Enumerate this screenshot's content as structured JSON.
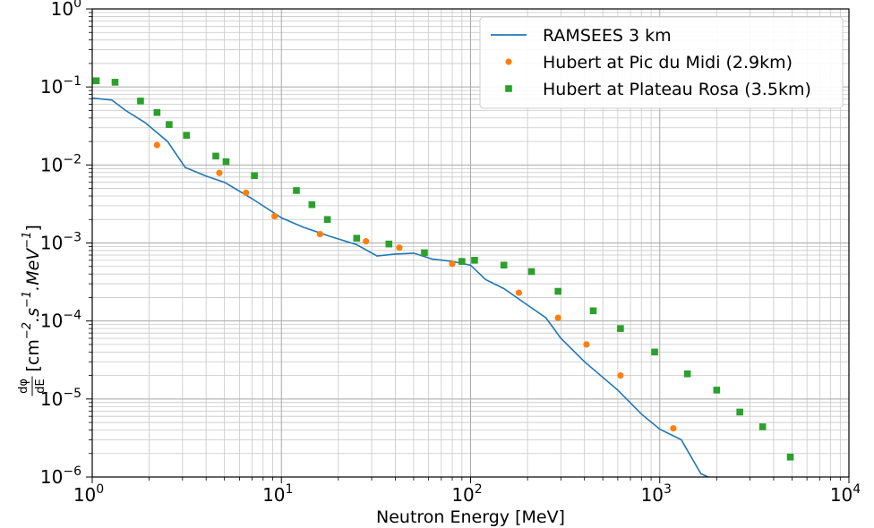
{
  "chart_data": {
    "type": "line",
    "title": "",
    "xlabel": "Neutron Energy [MeV]",
    "ylabel": {
      "prefix_num": "dφ",
      "prefix_den": "dE",
      "bracket_text": "[cm",
      "exp1": "−2",
      "mid1": ".s",
      "exp2": "−1",
      "mid2": ".MeV",
      "exp3": "−1",
      "suffix": "]"
    },
    "xscale": "log",
    "yscale": "log",
    "xlim": [
      1,
      10000
    ],
    "ylim": [
      1e-06,
      1
    ],
    "grid": "major and minor",
    "legend_position": "top-right",
    "x_ticks": [
      {
        "value": 1,
        "base": "10",
        "exp": "0"
      },
      {
        "value": 10,
        "base": "10",
        "exp": "1"
      },
      {
        "value": 100,
        "base": "10",
        "exp": "2"
      },
      {
        "value": 1000,
        "base": "10",
        "exp": "3"
      },
      {
        "value": 10000,
        "base": "10",
        "exp": "4"
      }
    ],
    "y_ticks": [
      {
        "value": 1,
        "base": "10",
        "exp": "0"
      },
      {
        "value": 0.1,
        "base": "10",
        "exp": "−1"
      },
      {
        "value": 0.01,
        "base": "10",
        "exp": "−2"
      },
      {
        "value": 0.001,
        "base": "10",
        "exp": "−3"
      },
      {
        "value": 0.0001,
        "base": "10",
        "exp": "−4"
      },
      {
        "value": 1e-05,
        "base": "10",
        "exp": "−5"
      },
      {
        "value": 1e-06,
        "base": "10",
        "exp": "−6"
      }
    ],
    "series": [
      {
        "name": "RAMSEES 3 km",
        "kind": "line",
        "color": "#1f77b4",
        "points": [
          [
            1.0,
            0.072
          ],
          [
            1.27,
            0.068
          ],
          [
            1.5,
            0.05
          ],
          [
            1.9,
            0.035
          ],
          [
            2.5,
            0.02
          ],
          [
            3.1,
            0.0093
          ],
          [
            4.0,
            0.0072
          ],
          [
            5.0,
            0.006
          ],
          [
            7.0,
            0.0037
          ],
          [
            10.0,
            0.0021
          ],
          [
            13.0,
            0.0016
          ],
          [
            18.0,
            0.00122
          ],
          [
            25.0,
            0.00095
          ],
          [
            32.0,
            0.00068
          ],
          [
            40.0,
            0.00072
          ],
          [
            50.0,
            0.00074
          ],
          [
            63.0,
            0.00062
          ],
          [
            80.0,
            0.00058
          ],
          [
            100.0,
            0.00052
          ],
          [
            120.0,
            0.00034
          ],
          [
            150.0,
            0.00026
          ],
          [
            200.0,
            0.00016
          ],
          [
            250.0,
            0.00011
          ],
          [
            300.0,
            6e-05
          ],
          [
            400.0,
            3e-05
          ],
          [
            600.0,
            1.3e-05
          ],
          [
            800.0,
            6.4e-06
          ],
          [
            1000.0,
            4.1e-06
          ],
          [
            1300.0,
            3e-06
          ],
          [
            1650.0,
            1.1e-06
          ],
          [
            1800.0,
            1e-06
          ]
        ]
      },
      {
        "name": "Hubert at Pic du Midi (2.9km)",
        "kind": "scatter-circle",
        "color": "#ff7f0e",
        "points": [
          [
            2.2,
            0.018
          ],
          [
            4.7,
            0.0079
          ],
          [
            6.5,
            0.0044
          ],
          [
            9.2,
            0.0022
          ],
          [
            16.0,
            0.0013
          ],
          [
            28.0,
            0.00105
          ],
          [
            42.0,
            0.00087
          ],
          [
            80.0,
            0.00054
          ],
          [
            180.0,
            0.00023
          ],
          [
            290.0,
            0.00011
          ],
          [
            410.0,
            5e-05
          ],
          [
            620.0,
            2e-05
          ],
          [
            1180.0,
            4.2e-06
          ]
        ]
      },
      {
        "name": "Hubert at Plateau Rosa (3.5km)",
        "kind": "scatter-square",
        "color": "#2ca02c",
        "points": [
          [
            1.05,
            0.12
          ],
          [
            1.32,
            0.115
          ],
          [
            1.8,
            0.066
          ],
          [
            2.2,
            0.047
          ],
          [
            2.55,
            0.033
          ],
          [
            3.15,
            0.024
          ],
          [
            4.5,
            0.013
          ],
          [
            5.1,
            0.011
          ],
          [
            7.2,
            0.0073
          ],
          [
            12.0,
            0.0047
          ],
          [
            14.5,
            0.0031
          ],
          [
            17.5,
            0.002
          ],
          [
            25.0,
            0.00115
          ],
          [
            37.0,
            0.00097
          ],
          [
            57.0,
            0.00075
          ],
          [
            90.0,
            0.00058
          ],
          [
            105.0,
            0.0006
          ],
          [
            150.0,
            0.00052
          ],
          [
            210.0,
            0.00043
          ],
          [
            290.0,
            0.00024
          ],
          [
            445.0,
            0.000135
          ],
          [
            620.0,
            8e-05
          ],
          [
            940.0,
            4e-05
          ],
          [
            1400.0,
            2.1e-05
          ],
          [
            2000.0,
            1.3e-05
          ],
          [
            2650.0,
            6.8e-06
          ],
          [
            3500.0,
            4.4e-06
          ],
          [
            4900.0,
            1.8e-06
          ]
        ]
      }
    ]
  }
}
